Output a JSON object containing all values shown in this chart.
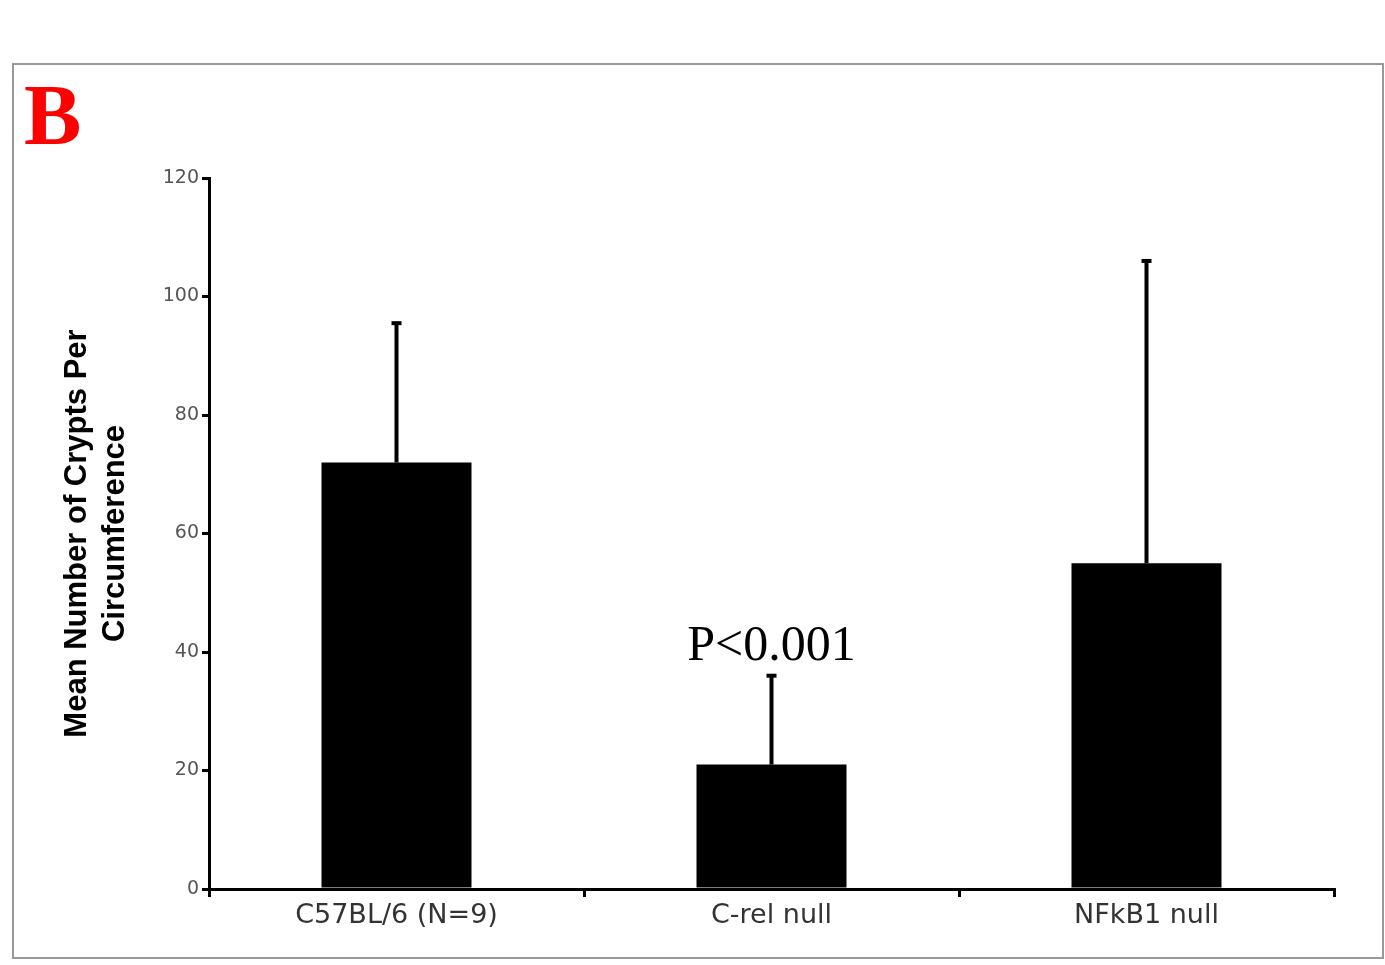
{
  "chart_data": {
    "type": "bar",
    "categories": [
      "C57BL/6 (N=9)",
      "C-rel null",
      "NFkB1 null"
    ],
    "values": [
      72,
      21,
      55
    ],
    "errors": [
      [
        72,
        95.5
      ],
      [
        21,
        36
      ],
      [
        55,
        106
      ]
    ],
    "color": "#000000",
    "ylabel": "Mean Number of Crypts Per Circumference",
    "ylim": [
      0,
      120
    ],
    "yticks": [
      0,
      20,
      40,
      60,
      80,
      100,
      120
    ],
    "grid": false,
    "legend": false,
    "annotations": [
      "B",
      "P<0.001"
    ]
  }
}
